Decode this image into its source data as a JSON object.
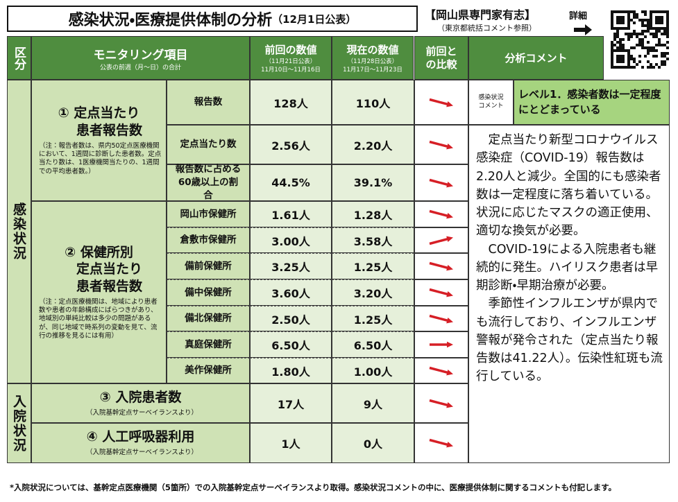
{
  "header": {
    "title": "感染状況・医療提供体制の分析",
    "date": "（12月1日公表）",
    "source": "【岡山県専門家有志】",
    "source_note": "（東京都統括コメント参照）",
    "detail": "詳細"
  },
  "table": {
    "columns": {
      "category": "区分",
      "item": "モニタリング項目",
      "item_note": "公表の前週（月～日）の合計",
      "previous": "前回の数値",
      "previous_notes": [
        "（11月21日公表）",
        "11月10日～11月16日"
      ],
      "current": "現在の数値",
      "current_notes": [
        "（11月28日公表）",
        "11月17日～11月23日"
      ],
      "comparison": "前回との比較",
      "comment": "分析コメント"
    },
    "categories": [
      "感染状況",
      "入院状況"
    ],
    "groups": [
      {
        "title": [
          "① 定点当たり",
          "患者報告数"
        ],
        "note": "（注：報告者数は、県内50定点医療機関において、1週間に診断した患者数。定点当たり数は、1医療機関当たりの、1週間での平均患者数。）",
        "rows": [
          {
            "label": "報告数",
            "previous": "128人",
            "current": "110人"
          },
          {
            "label": "定点当たり数",
            "previous": "2.56人",
            "current": "2.20人"
          },
          {
            "label": "報告数に占める60歳以上の割合",
            "previous": "44.5%",
            "current": "39.1%"
          }
        ]
      },
      {
        "title": [
          "② 保健所別",
          "定点当たり",
          "患者報告数"
        ],
        "note": "（注：定点医療機関は、地域により患者数や患者の年齢構成にばらつきがあり、地域別の単純比較は多少の問題があるが、同じ地域で時系列の変動を見て、流行の推移を見るには有用）",
        "rows": [
          {
            "label": "岡山市保健所",
            "previous": "1.61人",
            "current": "1.28人"
          },
          {
            "label": "倉敷市保健所",
            "previous": "3.00人",
            "current": "3.58人"
          },
          {
            "label": "備前保健所",
            "previous": "3.25人",
            "current": "1.25人"
          },
          {
            "label": "備中保健所",
            "previous": "3.60人",
            "current": "3.20人"
          },
          {
            "label": "備北保健所",
            "previous": "2.50人",
            "current": "1.25人"
          },
          {
            "label": "真庭保健所",
            "previous": "6.50人",
            "current": "6.50人"
          },
          {
            "label": "美作保健所",
            "previous": "1.80人",
            "current": "1.00人"
          }
        ]
      },
      {
        "title": [
          "③ 入院患者数"
        ],
        "note": "（入院基幹定点サーベイランスより）",
        "rows": [
          {
            "previous": "17人",
            "current": "9人"
          }
        ]
      },
      {
        "title": [
          "④ 人工呼吸器利用"
        ],
        "note": "（入院基幹定点サーベイランスより）",
        "rows": [
          {
            "previous": "1人",
            "current": "0人"
          }
        ]
      }
    ],
    "comment": {
      "label": "感染状況コメント",
      "level": "レベル1．感染者数は一定程度にとどまっている",
      "paragraphs": [
        "定点当たり新型コロナウイルス感染症（COVID-19）報告数は2.20人と減少。全国的にも感染者数は一定程度に落ち着いている。状況に応じたマスクの適正使用、適切な換気が必要。",
        "COVID-19による入院患者も継続的に発生。ハイリスク患者は早期診断・早期治療が必要。",
        "季節性インフルエンザが県内でも流行しており、インフルエンザ警報が発令された（定点当たり報告数は41.22人）。伝染性紅斑も流行している。"
      ]
    }
  },
  "footer": "*入院状況については、基幹定点医療機関（5箇所）での入院基幹定点サーベイランスより取得。感染状況コメントの中に、医療提供体制に関するコメントも付記します。"
}
